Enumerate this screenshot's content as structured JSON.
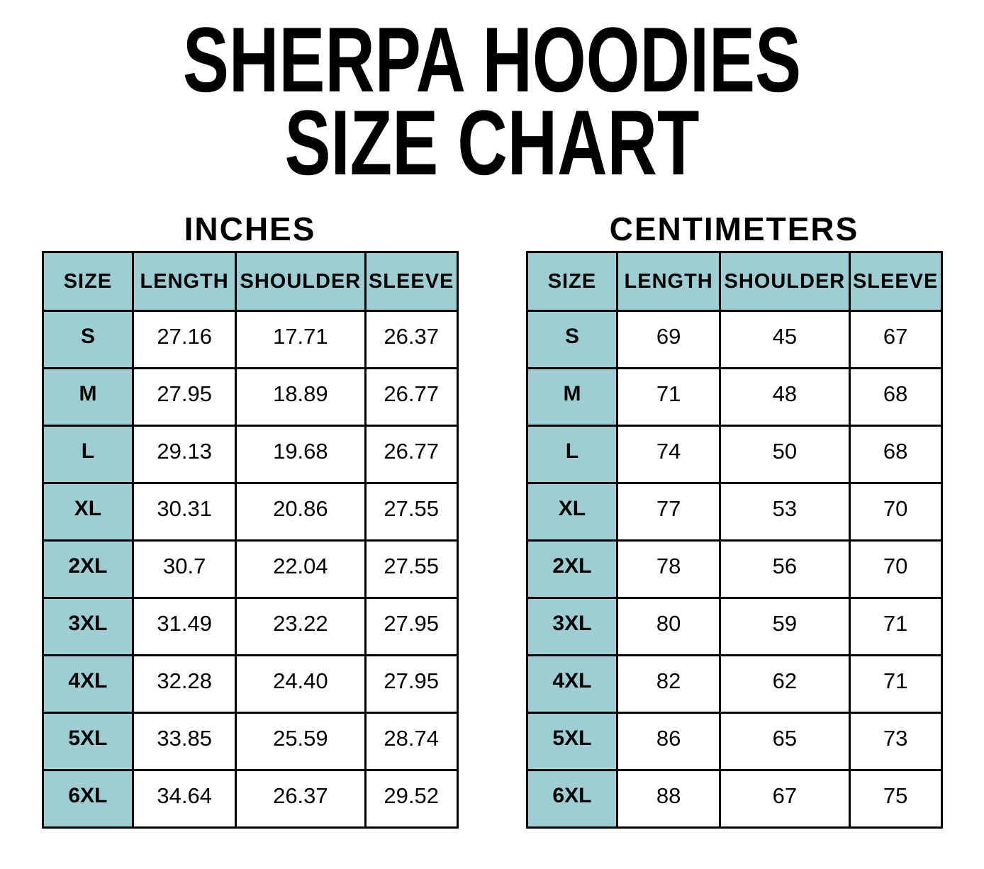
{
  "title": {
    "line1": "SHERPA HOODIES",
    "line2": "SIZE CHART"
  },
  "colors": {
    "header_bg": "#9ECED3",
    "border": "#000000",
    "background": "#FFFFFF",
    "text": "#000000"
  },
  "tables": [
    {
      "heading": "INCHES",
      "columns": [
        "SIZE",
        "LENGTH",
        "SHOULDER",
        "SLEEVE"
      ],
      "rows": [
        {
          "size": "S",
          "values": [
            "27.16",
            "17.71",
            "26.37"
          ]
        },
        {
          "size": "M",
          "values": [
            "27.95",
            "18.89",
            "26.77"
          ]
        },
        {
          "size": "L",
          "values": [
            "29.13",
            "19.68",
            "26.77"
          ]
        },
        {
          "size": "XL",
          "values": [
            "30.31",
            "20.86",
            "27.55"
          ]
        },
        {
          "size": "2XL",
          "values": [
            "30.7",
            "22.04",
            "27.55"
          ]
        },
        {
          "size": "3XL",
          "values": [
            "31.49",
            "23.22",
            "27.95"
          ]
        },
        {
          "size": "4XL",
          "values": [
            "32.28",
            "24.40",
            "27.95"
          ]
        },
        {
          "size": "5XL",
          "values": [
            "33.85",
            "25.59",
            "28.74"
          ]
        },
        {
          "size": "6XL",
          "values": [
            "34.64",
            "26.37",
            "29.52"
          ]
        }
      ]
    },
    {
      "heading": "CENTIMETERS",
      "columns": [
        "SIZE",
        "LENGTH",
        "SHOULDER",
        "SLEEVE"
      ],
      "rows": [
        {
          "size": "S",
          "values": [
            "69",
            "45",
            "67"
          ]
        },
        {
          "size": "M",
          "values": [
            "71",
            "48",
            "68"
          ]
        },
        {
          "size": "L",
          "values": [
            "74",
            "50",
            "68"
          ]
        },
        {
          "size": "XL",
          "values": [
            "77",
            "53",
            "70"
          ]
        },
        {
          "size": "2XL",
          "values": [
            "78",
            "56",
            "70"
          ]
        },
        {
          "size": "3XL",
          "values": [
            "80",
            "59",
            "71"
          ]
        },
        {
          "size": "4XL",
          "values": [
            "82",
            "62",
            "71"
          ]
        },
        {
          "size": "5XL",
          "values": [
            "86",
            "65",
            "73"
          ]
        },
        {
          "size": "6XL",
          "values": [
            "88",
            "67",
            "75"
          ]
        }
      ]
    }
  ],
  "chart_data": [
    {
      "type": "table",
      "title": "SHERPA HOODIES SIZE CHART — INCHES",
      "columns": [
        "SIZE",
        "LENGTH",
        "SHOULDER",
        "SLEEVE"
      ],
      "rows": [
        [
          "S",
          27.16,
          17.71,
          26.37
        ],
        [
          "M",
          27.95,
          18.89,
          26.77
        ],
        [
          "L",
          29.13,
          19.68,
          26.77
        ],
        [
          "XL",
          30.31,
          20.86,
          27.55
        ],
        [
          "2XL",
          30.7,
          22.04,
          27.55
        ],
        [
          "3XL",
          31.49,
          23.22,
          27.95
        ],
        [
          "4XL",
          32.28,
          24.4,
          27.95
        ],
        [
          "5XL",
          33.85,
          25.59,
          28.74
        ],
        [
          "6XL",
          34.64,
          26.37,
          29.52
        ]
      ]
    },
    {
      "type": "table",
      "title": "SHERPA HOODIES SIZE CHART — CENTIMETERS",
      "columns": [
        "SIZE",
        "LENGTH",
        "SHOULDER",
        "SLEEVE"
      ],
      "rows": [
        [
          "S",
          69,
          45,
          67
        ],
        [
          "M",
          71,
          48,
          68
        ],
        [
          "L",
          74,
          50,
          68
        ],
        [
          "XL",
          77,
          53,
          70
        ],
        [
          "2XL",
          78,
          56,
          70
        ],
        [
          "3XL",
          80,
          59,
          71
        ],
        [
          "4XL",
          82,
          62,
          71
        ],
        [
          "5XL",
          86,
          65,
          73
        ],
        [
          "6XL",
          88,
          67,
          75
        ]
      ]
    }
  ]
}
